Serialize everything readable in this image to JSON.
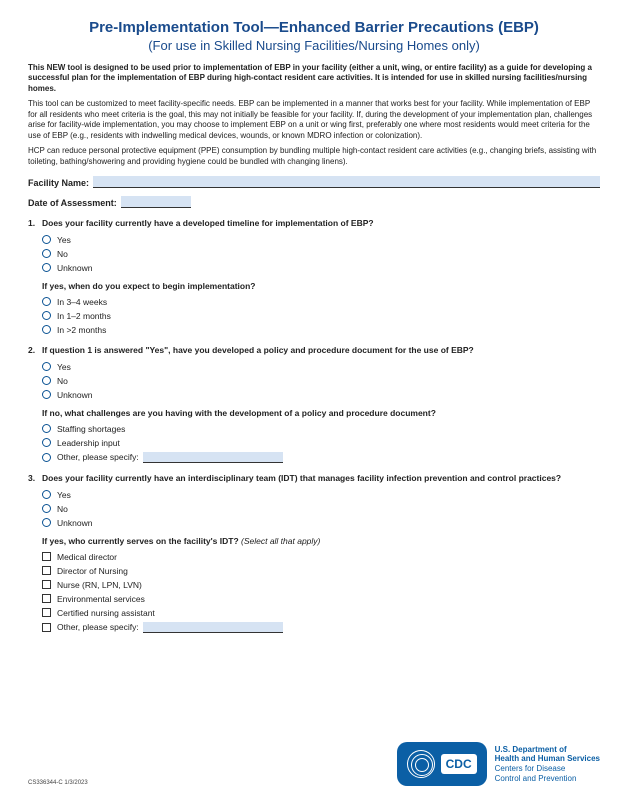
{
  "title": "Pre-Implementation Tool—Enhanced Barrier Precautions (EBP)",
  "subtitle": "(For use in Skilled Nursing Facilities/Nursing Homes only)",
  "intro_bold": "This NEW tool is designed to be used prior to implementation of EBP in your facility (either a unit, wing, or entire facility) as a guide for developing a successful plan for the implementation of EBP during high-contact resident care activities. It is intended for use in skilled nursing facilities/nursing homes.",
  "intro_p1": "This tool can be customized to meet facility-specific needs. EBP can be implemented in a manner that works best for your facility. While implementation of EBP for all residents who meet criteria is the goal, this may not initially be feasible for your facility. If, during the development of your implementation plan, challenges arise for facility-wide implementation, you may choose to implement EBP on a unit or wing first, preferably one where most residents would meet criteria for the use of EBP (e.g., residents with indwelling medical devices, wounds, or known MDRO infection or colonization).",
  "intro_p2": "HCP can reduce personal protective equipment (PPE) consumption by bundling multiple high-contact resident care activities (e.g., changing briefs, assisting with toileting, bathing/showering and providing hygiene could be bundled with changing linens).",
  "facility_label": "Facility Name:",
  "date_label": "Date of Assessment:",
  "q1": {
    "num": "1.",
    "text": "Does your facility currently have a developed timeline for implementation of EBP?",
    "opts": [
      "Yes",
      "No",
      "Unknown"
    ],
    "sub": "If yes, when do you expect to begin implementation?",
    "sub_opts": [
      "In 3–4 weeks",
      "In 1–2 months",
      "In >2 months"
    ]
  },
  "q2": {
    "num": "2.",
    "text": "If question 1 is answered \"Yes\", have you developed a policy and procedure document for the use of EBP?",
    "opts": [
      "Yes",
      "No",
      "Unknown"
    ],
    "sub": "If no, what challenges are you having with the development of a policy and procedure document?",
    "sub_opts": [
      "Staffing shortages",
      "Leadership input",
      "Other, please specify:"
    ]
  },
  "q3": {
    "num": "3.",
    "text": "Does your facility currently have an interdisciplinary team (IDT) that manages facility infection prevention and control practices?",
    "opts": [
      "Yes",
      "No",
      "Unknown"
    ],
    "sub": "If yes, who currently serves on the facility's IDT?",
    "sub_ital": " (Select all that apply)",
    "sub_opts": [
      "Medical director",
      "Director of Nursing",
      "Nurse (RN, LPN, LVN)",
      "Environmental services",
      "Certified nursing assistant",
      "Other, please specify:"
    ]
  },
  "cdc": "CDC",
  "dept1": "U.S. Department of",
  "dept2": "Health and Human Services",
  "dept3": "Centers for Disease",
  "dept4": "Control and Prevention",
  "footnote": "CS336344-C    1/3/2023"
}
